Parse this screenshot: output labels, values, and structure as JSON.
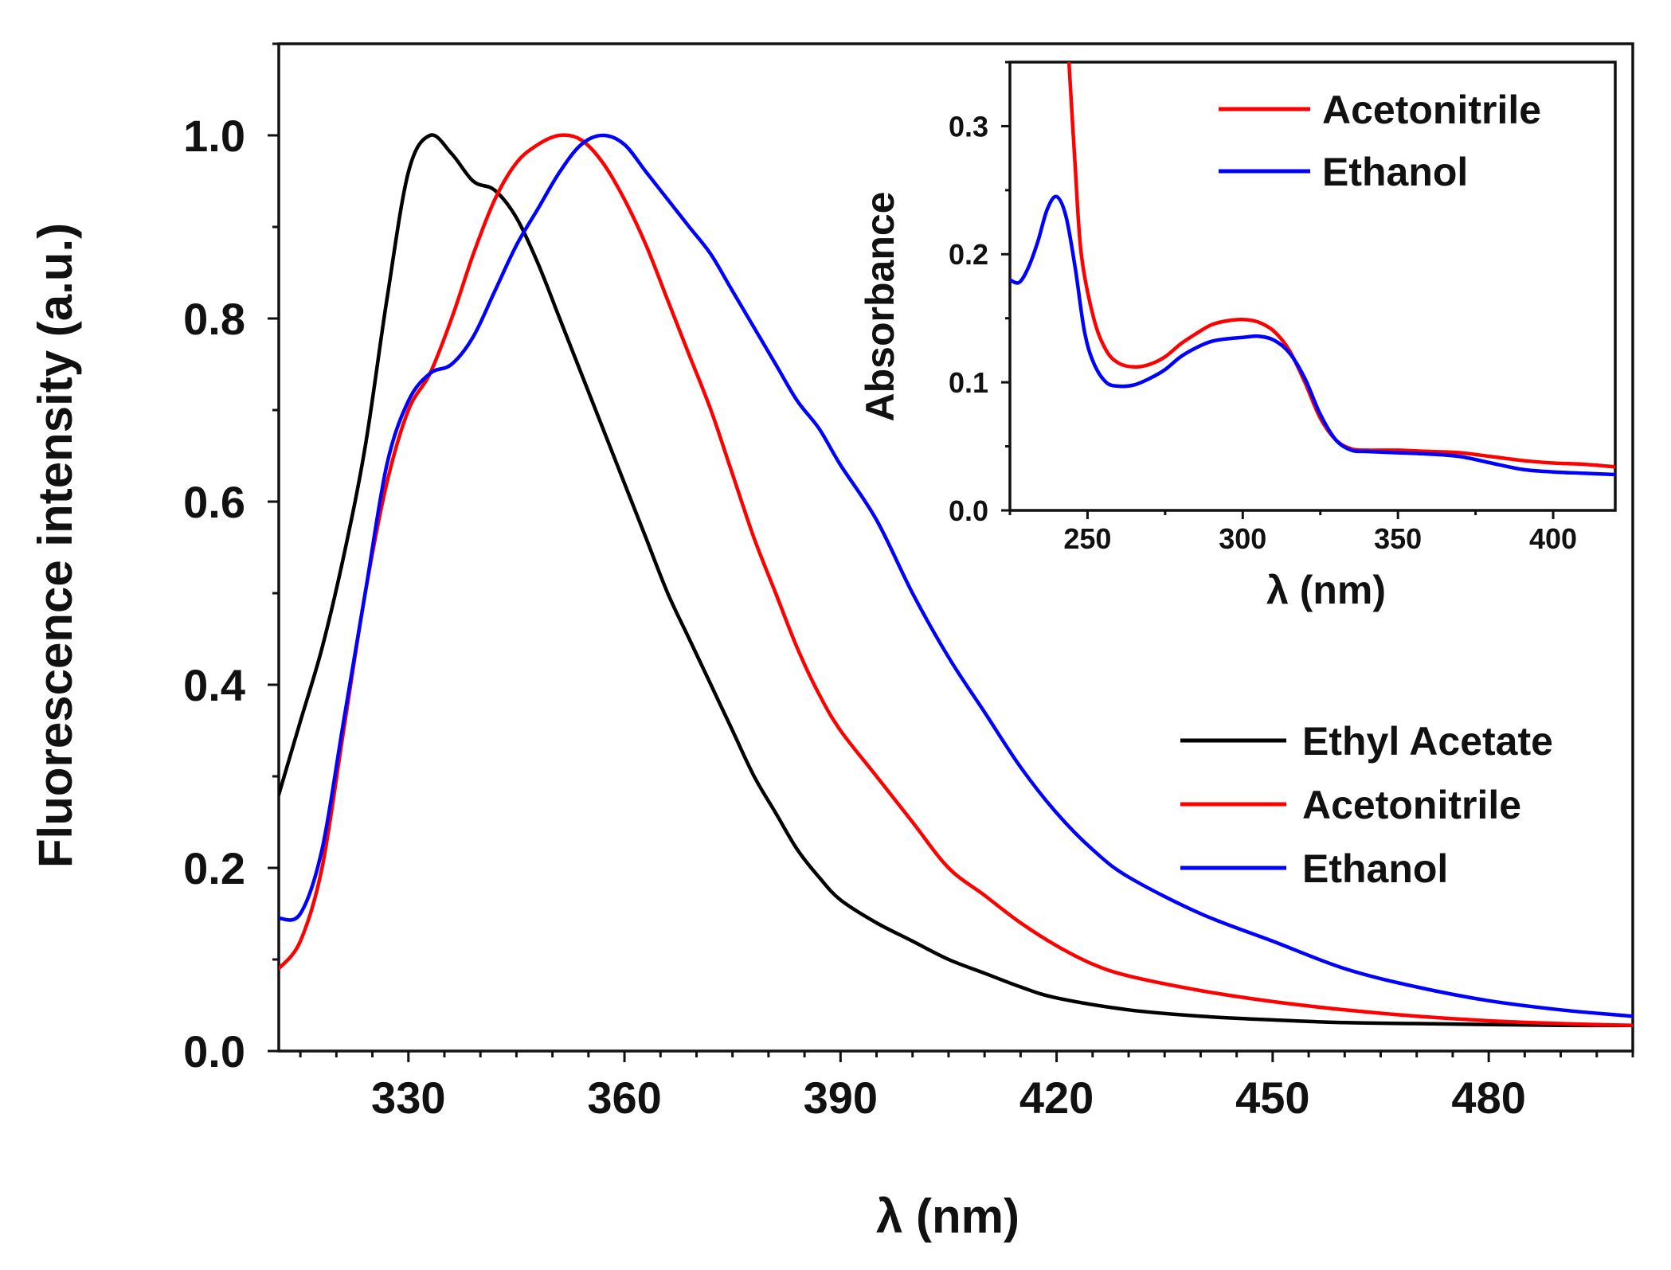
{
  "colors": {
    "ethyl_acetate": "#000000",
    "acetonitrile": "#ff0000",
    "ethanol": "#0000ff",
    "axis": "#111111",
    "background": "#ffffff"
  },
  "chart_data": [
    {
      "id": "main",
      "type": "line",
      "title": "",
      "xlabel": "λ (nm)",
      "ylabel": "Fluorescence intensity (a.u.)",
      "xlim": [
        312,
        500
      ],
      "ylim": [
        0.0,
        1.1
      ],
      "x_ticks": [
        330,
        360,
        390,
        420,
        450,
        480
      ],
      "x_tick_labels": [
        "330",
        "360",
        "390",
        "420",
        "450",
        "480"
      ],
      "y_ticks": [
        0.0,
        0.2,
        0.4,
        0.6,
        0.8,
        1.0
      ],
      "y_tick_labels": [
        "0.0",
        "0.2",
        "0.4",
        "0.6",
        "0.8",
        "1.0"
      ],
      "grid": false,
      "legend_position": "right-middle",
      "series": [
        {
          "name": "Ethyl Acetate",
          "color": "#000000",
          "points": [
            [
              312,
              0.28
            ],
            [
              315,
              0.36
            ],
            [
              318,
              0.44
            ],
            [
              321,
              0.54
            ],
            [
              324,
              0.66
            ],
            [
              327,
              0.82
            ],
            [
              330,
              0.96
            ],
            [
              333,
              1.0
            ],
            [
              336,
              0.98
            ],
            [
              339,
              0.95
            ],
            [
              342,
              0.94
            ],
            [
              345,
              0.91
            ],
            [
              348,
              0.86
            ],
            [
              351,
              0.8
            ],
            [
              354,
              0.74
            ],
            [
              357,
              0.68
            ],
            [
              360,
              0.62
            ],
            [
              363,
              0.56
            ],
            [
              366,
              0.5
            ],
            [
              369,
              0.45
            ],
            [
              372,
              0.4
            ],
            [
              375,
              0.35
            ],
            [
              378,
              0.3
            ],
            [
              381,
              0.26
            ],
            [
              384,
              0.22
            ],
            [
              387,
              0.19
            ],
            [
              390,
              0.165
            ],
            [
              395,
              0.14
            ],
            [
              400,
              0.12
            ],
            [
              405,
              0.1
            ],
            [
              410,
              0.085
            ],
            [
              415,
              0.07
            ],
            [
              420,
              0.058
            ],
            [
              430,
              0.045
            ],
            [
              440,
              0.038
            ],
            [
              450,
              0.034
            ],
            [
              460,
              0.031
            ],
            [
              470,
              0.03
            ],
            [
              480,
              0.029
            ],
            [
              490,
              0.028
            ],
            [
              500,
              0.028
            ]
          ]
        },
        {
          "name": "Acetonitrile",
          "color": "#ff0000",
          "points": [
            [
              312,
              0.09
            ],
            [
              315,
              0.12
            ],
            [
              318,
              0.2
            ],
            [
              321,
              0.35
            ],
            [
              324,
              0.5
            ],
            [
              327,
              0.62
            ],
            [
              330,
              0.7
            ],
            [
              333,
              0.74
            ],
            [
              336,
              0.8
            ],
            [
              339,
              0.87
            ],
            [
              342,
              0.93
            ],
            [
              345,
              0.97
            ],
            [
              348,
              0.99
            ],
            [
              351,
              1.0
            ],
            [
              354,
              0.995
            ],
            [
              357,
              0.97
            ],
            [
              360,
              0.93
            ],
            [
              363,
              0.88
            ],
            [
              366,
              0.82
            ],
            [
              369,
              0.76
            ],
            [
              372,
              0.7
            ],
            [
              375,
              0.63
            ],
            [
              378,
              0.56
            ],
            [
              381,
              0.5
            ],
            [
              384,
              0.44
            ],
            [
              387,
              0.39
            ],
            [
              390,
              0.35
            ],
            [
              395,
              0.3
            ],
            [
              400,
              0.25
            ],
            [
              405,
              0.2
            ],
            [
              410,
              0.17
            ],
            [
              415,
              0.14
            ],
            [
              420,
              0.115
            ],
            [
              425,
              0.095
            ],
            [
              430,
              0.082
            ],
            [
              440,
              0.066
            ],
            [
              450,
              0.054
            ],
            [
              460,
              0.045
            ],
            [
              470,
              0.038
            ],
            [
              480,
              0.033
            ],
            [
              490,
              0.03
            ],
            [
              500,
              0.028
            ]
          ]
        },
        {
          "name": "Ethanol",
          "color": "#0000ff",
          "points": [
            [
              312,
              0.145
            ],
            [
              315,
              0.15
            ],
            [
              318,
              0.22
            ],
            [
              321,
              0.36
            ],
            [
              324,
              0.5
            ],
            [
              327,
              0.64
            ],
            [
              330,
              0.71
            ],
            [
              333,
              0.74
            ],
            [
              336,
              0.75
            ],
            [
              339,
              0.78
            ],
            [
              342,
              0.83
            ],
            [
              345,
              0.88
            ],
            [
              348,
              0.92
            ],
            [
              351,
              0.96
            ],
            [
              354,
              0.99
            ],
            [
              357,
              1.0
            ],
            [
              360,
              0.99
            ],
            [
              363,
              0.96
            ],
            [
              366,
              0.93
            ],
            [
              369,
              0.9
            ],
            [
              372,
              0.87
            ],
            [
              375,
              0.83
            ],
            [
              378,
              0.79
            ],
            [
              381,
              0.75
            ],
            [
              384,
              0.71
            ],
            [
              387,
              0.68
            ],
            [
              390,
              0.64
            ],
            [
              395,
              0.58
            ],
            [
              400,
              0.5
            ],
            [
              405,
              0.43
            ],
            [
              410,
              0.37
            ],
            [
              415,
              0.31
            ],
            [
              420,
              0.26
            ],
            [
              425,
              0.22
            ],
            [
              430,
              0.19
            ],
            [
              440,
              0.15
            ],
            [
              450,
              0.12
            ],
            [
              460,
              0.09
            ],
            [
              470,
              0.07
            ],
            [
              480,
              0.055
            ],
            [
              490,
              0.045
            ],
            [
              500,
              0.038
            ]
          ]
        }
      ]
    },
    {
      "id": "inset",
      "type": "line",
      "title": "",
      "xlabel": "λ (nm)",
      "ylabel": "Absorbance",
      "xlim": [
        225,
        420
      ],
      "ylim": [
        0.0,
        0.35
      ],
      "x_ticks": [
        250,
        300,
        350,
        400
      ],
      "x_tick_labels": [
        "250",
        "300",
        "350",
        "400"
      ],
      "y_ticks": [
        0.0,
        0.1,
        0.2,
        0.3
      ],
      "y_tick_labels": [
        "0.0",
        "0.1",
        "0.2",
        "0.3"
      ],
      "grid": false,
      "legend_position": "top-right",
      "series": [
        {
          "name": "Acetonitrile",
          "color": "#ff0000",
          "points": [
            [
              244,
              0.35
            ],
            [
              246,
              0.27
            ],
            [
              248,
              0.2
            ],
            [
              252,
              0.15
            ],
            [
              256,
              0.125
            ],
            [
              260,
              0.115
            ],
            [
              265,
              0.112
            ],
            [
              270,
              0.114
            ],
            [
              275,
              0.12
            ],
            [
              280,
              0.13
            ],
            [
              285,
              0.138
            ],
            [
              290,
              0.145
            ],
            [
              295,
              0.148
            ],
            [
              300,
              0.149
            ],
            [
              305,
              0.147
            ],
            [
              310,
              0.14
            ],
            [
              315,
              0.125
            ],
            [
              320,
              0.1
            ],
            [
              325,
              0.072
            ],
            [
              330,
              0.055
            ],
            [
              335,
              0.048
            ],
            [
              340,
              0.047
            ],
            [
              350,
              0.047
            ],
            [
              360,
              0.046
            ],
            [
              370,
              0.045
            ],
            [
              380,
              0.042
            ],
            [
              390,
              0.039
            ],
            [
              400,
              0.037
            ],
            [
              410,
              0.036
            ],
            [
              420,
              0.034
            ]
          ]
        },
        {
          "name": "Ethanol",
          "color": "#0000ff",
          "points": [
            [
              225,
              0.18
            ],
            [
              228,
              0.178
            ],
            [
              231,
              0.19
            ],
            [
              234,
              0.21
            ],
            [
              237,
              0.235
            ],
            [
              240,
              0.245
            ],
            [
              243,
              0.23
            ],
            [
              246,
              0.19
            ],
            [
              249,
              0.14
            ],
            [
              252,
              0.115
            ],
            [
              256,
              0.1
            ],
            [
              260,
              0.097
            ],
            [
              265,
              0.098
            ],
            [
              270,
              0.103
            ],
            [
              275,
              0.11
            ],
            [
              280,
              0.12
            ],
            [
              285,
              0.127
            ],
            [
              290,
              0.132
            ],
            [
              295,
              0.134
            ],
            [
              300,
              0.135
            ],
            [
              305,
              0.136
            ],
            [
              310,
              0.133
            ],
            [
              315,
              0.123
            ],
            [
              320,
              0.103
            ],
            [
              325,
              0.075
            ],
            [
              330,
              0.055
            ],
            [
              335,
              0.047
            ],
            [
              340,
              0.046
            ],
            [
              350,
              0.045
            ],
            [
              360,
              0.044
            ],
            [
              370,
              0.042
            ],
            [
              380,
              0.037
            ],
            [
              390,
              0.032
            ],
            [
              400,
              0.03
            ],
            [
              410,
              0.029
            ],
            [
              420,
              0.028
            ]
          ]
        }
      ]
    }
  ]
}
